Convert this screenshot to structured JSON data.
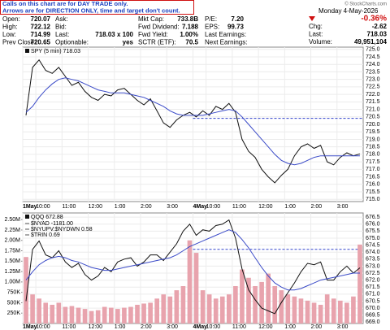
{
  "header": {
    "notes": [
      "Calls on this chart are for DAY TRADE only.",
      "Arrows are for DIRECTION ONLY, time and target don't count."
    ],
    "copyright": "© StockCharts.com",
    "quote": {
      "rows": [
        [
          [
            "Open:",
            "720.07"
          ],
          [
            "Ask:"
          ],
          [
            "Mkt Cap:",
            "733.8B"
          ],
          [
            "P/E:",
            "7.20"
          ]
        ],
        [
          [
            "High:",
            "722.12"
          ],
          [
            "Bid:"
          ],
          [
            "Fwd Dividend:",
            "7.188"
          ],
          [
            "EPS:",
            "99.73"
          ]
        ],
        [
          [
            "Low:",
            "714.99"
          ],
          [
            "Last:",
            "718.03 x 100"
          ],
          [
            "Fwd Yield:",
            "1.00%"
          ],
          [
            "Last Earnings:"
          ]
        ],
        [
          [
            "Prev Close:",
            "720.65"
          ],
          [
            "Optionable:",
            "yes"
          ],
          [
            "SCTR (ETF):",
            "70.5"
          ],
          [
            "Next Earnings:"
          ]
        ]
      ]
    },
    "side": {
      "date": "Monday 4-May-2026",
      "change_pct": "-0.36%",
      "rows": [
        [
          "Chg:",
          "-2.62"
        ],
        [
          "Last:",
          "718.03"
        ],
        [
          "Volume:",
          "49,951,104"
        ]
      ]
    }
  },
  "chart_data": [
    {
      "type": "line",
      "title": "SPY (5 min) 718.03",
      "grid": true,
      "categories": [
        "1May",
        null,
        "10:00",
        null,
        null,
        null,
        "11:00",
        null,
        null,
        null,
        "12:00",
        null,
        null,
        null,
        "1:00",
        null,
        null,
        null,
        "2:00",
        null,
        null,
        null,
        "3:00",
        null,
        null,
        null,
        "4May",
        null,
        "10:00",
        null,
        null,
        null,
        "11:00",
        null,
        null,
        null,
        "12:00",
        null,
        null,
        null,
        "1:00",
        null,
        null,
        null,
        "2:00",
        null,
        null,
        null,
        "3:00",
        null,
        null,
        null
      ],
      "ylim": [
        714.85,
        725.15
      ],
      "yticks": [
        {
          "value": 725,
          "label": "725.0"
        },
        724.5,
        {
          "value": 724,
          "label": "724.0"
        },
        723.5,
        {
          "value": 723,
          "label": "723.0"
        },
        722.5,
        {
          "value": 722,
          "label": "722.0"
        },
        721.5,
        {
          "value": 721,
          "label": "721.0"
        },
        720.5,
        {
          "value": 720,
          "label": "720.0"
        },
        719.5,
        {
          "value": 719,
          "label": "719.0"
        },
        718.5,
        {
          "value": 718,
          "label": "718.0"
        },
        717.5,
        {
          "value": 717,
          "label": "717.0"
        },
        716.5,
        {
          "value": 716,
          "label": "716.0"
        },
        715.5,
        {
          "value": 715,
          "label": "715.0"
        }
      ],
      "hlines": [
        {
          "value": 720.4,
          "color": "#3344cc"
        }
      ],
      "series": [
        {
          "color": "#111111",
          "values": [
            720.6,
            723.8,
            724.3,
            723.6,
            723.4,
            723.8,
            723.2,
            722.6,
            722.8,
            722.2,
            721.8,
            721.6,
            722.0,
            721.9,
            722.3,
            722.4,
            722.0,
            721.6,
            721.3,
            721.7,
            720.9,
            720.1,
            719.8,
            720.3,
            720.6,
            720.8,
            720.5,
            720.9,
            720.6,
            721.2,
            721.0,
            721.4,
            720.8,
            719.0,
            718.2,
            717.8,
            717.0,
            716.5,
            716.1,
            716.6,
            717.0,
            717.9,
            718.5,
            718.7,
            718.4,
            718.6,
            717.5,
            717.3,
            717.8,
            718.1,
            717.9,
            718.03
          ]
        },
        {
          "color": "#3b4bc8",
          "values": [
            720.8,
            721.2,
            721.8,
            722.3,
            722.7,
            723.0,
            723.1,
            723.0,
            722.9,
            722.7,
            722.5,
            722.3,
            722.2,
            722.1,
            722.1,
            722.1,
            722.0,
            721.9,
            721.8,
            721.6,
            721.4,
            721.2,
            720.9,
            720.7,
            720.6,
            720.6,
            720.6,
            720.6,
            720.7,
            720.8,
            720.9,
            721.0,
            720.9,
            720.5,
            720.0,
            719.5,
            719.0,
            718.5,
            718.0,
            717.6,
            717.4,
            717.3,
            717.4,
            717.6,
            717.8,
            717.9,
            717.9,
            717.9,
            717.9,
            717.9,
            717.9,
            717.9
          ]
        }
      ]
    },
    {
      "type": "line",
      "title": "QQQ 672.88",
      "grid": true,
      "legend_items": [
        "$NYAD -1181.00",
        "$NYUPV:$NYDWN 0.58",
        "$TRIN 0.69"
      ],
      "categories": [
        "1May",
        null,
        "10:00",
        null,
        null,
        null,
        "11:00",
        null,
        null,
        null,
        "12:00",
        null,
        null,
        null,
        "1:00",
        null,
        null,
        null,
        "2:00",
        null,
        null,
        null,
        "3:00",
        null,
        null,
        null,
        "4May",
        null,
        "10:00",
        null,
        null,
        null,
        "11:00",
        null,
        null,
        null,
        "12:00",
        null,
        null,
        null,
        "1:00",
        null,
        null,
        null,
        "2:00",
        null,
        null,
        null,
        "3:00",
        null,
        null,
        null
      ],
      "ylim": [
        668.9,
        676.8
      ],
      "yticks": [
        676.5,
        {
          "value": 676,
          "label": "676.0"
        },
        675.5,
        {
          "value": 675,
          "label": "675.0"
        },
        674.5,
        {
          "value": 674,
          "label": "674.0"
        },
        673.5,
        {
          "value": 673,
          "label": "673.0"
        },
        672.5,
        {
          "value": 672,
          "label": "672.0"
        },
        671.5,
        {
          "value": 671,
          "label": "671.0"
        },
        670.5,
        {
          "value": 670,
          "label": "670.0"
        },
        669.5,
        {
          "value": 669,
          "label": "669.0"
        }
      ],
      "y2lim": [
        0,
        2660000
      ],
      "y2ticks": [
        {
          "value": 2500000,
          "label": "2.50M"
        },
        {
          "value": 2250000,
          "label": "2.25M"
        },
        {
          "value": 2000000,
          "label": "2.00M"
        },
        {
          "value": 1750000,
          "label": "1.75M"
        },
        {
          "value": 1500000,
          "label": "1.50M"
        },
        {
          "value": 1250000,
          "label": "1.25M"
        },
        {
          "value": 1000000,
          "label": "1.00M"
        },
        {
          "value": 750000,
          "label": "750K"
        },
        {
          "value": 500000,
          "label": "500K"
        },
        {
          "value": 250000,
          "label": "250K"
        }
      ],
      "hlines": [
        {
          "value": 674.2,
          "color": "#3344cc"
        }
      ],
      "series": [
        {
          "type": "bar",
          "axis": "y2",
          "color": "#e8a3ad",
          "values": [
            1600000,
            700000,
            600000,
            500000,
            450000,
            500000,
            400000,
            420000,
            380000,
            350000,
            300000,
            320000,
            400000,
            380000,
            350000,
            380000,
            400000,
            450000,
            480000,
            500000,
            600000,
            700000,
            650000,
            800000,
            900000,
            2000000,
            1700000,
            800000,
            700000,
            600000,
            650000,
            700000,
            900000,
            1300000,
            1100000,
            900000,
            1000000,
            1200000,
            900000,
            800000,
            700000,
            650000,
            600000,
            550000,
            500000,
            450000,
            700000,
            600000,
            550000,
            500000,
            650000,
            1900000
          ]
        },
        {
          "color": "#111111",
          "values": [
            670.5,
            674.2,
            674.8,
            673.8,
            673.6,
            674.1,
            673.3,
            672.9,
            673.2,
            672.4,
            672.0,
            672.3,
            672.9,
            672.6,
            673.3,
            673.5,
            673.6,
            673.0,
            673.3,
            673.8,
            673.8,
            673.4,
            674.0,
            674.6,
            675.5,
            676.0,
            675.2,
            675.6,
            675.5,
            675.9,
            676.0,
            676.3,
            675.0,
            672.8,
            671.3,
            670.6,
            670.0,
            669.8,
            669.6,
            670.4,
            671.1,
            671.8,
            672.6,
            673.2,
            673.1,
            673.3,
            672.0,
            672.0,
            672.6,
            673.0,
            672.5,
            672.88
          ]
        },
        {
          "color": "#3b4bc8",
          "values": [
            672.0,
            672.6,
            673.1,
            673.4,
            673.6,
            673.7,
            673.6,
            673.4,
            673.3,
            673.1,
            672.9,
            672.8,
            672.7,
            672.7,
            672.8,
            672.9,
            673.0,
            673.1,
            673.2,
            673.3,
            673.4,
            673.5,
            673.6,
            673.8,
            674.1,
            674.4,
            674.6,
            674.8,
            675.0,
            675.2,
            675.4,
            675.6,
            675.4,
            674.9,
            674.3,
            673.6,
            672.9,
            672.3,
            671.8,
            671.5,
            671.3,
            671.3,
            671.4,
            671.6,
            671.8,
            672.0,
            672.1,
            672.2,
            672.3,
            672.4,
            672.5,
            672.5
          ]
        }
      ]
    }
  ]
}
